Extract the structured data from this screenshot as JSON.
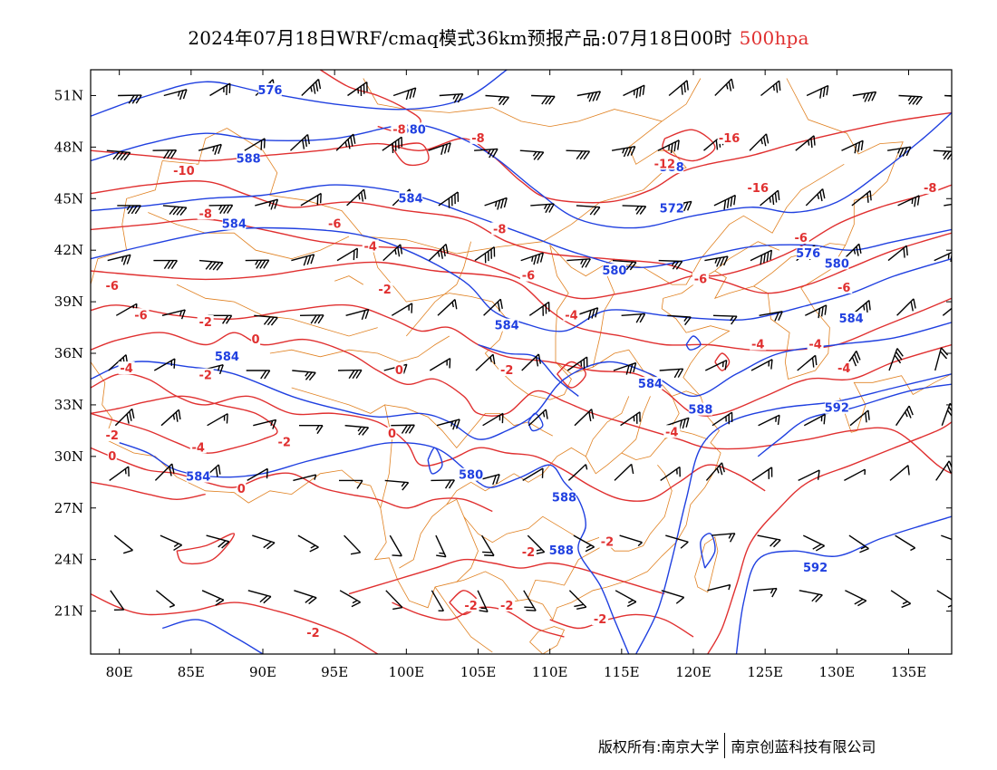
{
  "title": {
    "main": "2024年07月18日WRF/cmaq模式36km预报产品:07月18日00时",
    "level": "500hpa"
  },
  "colors": {
    "temperature": "#e03030",
    "height": "#2040e0",
    "coast": "#e08020",
    "wind": "#000000"
  },
  "map": {
    "lon_range": [
      78,
      138
    ],
    "lat_range": [
      18.5,
      52.5
    ],
    "lon_ticks": [
      "80E",
      "85E",
      "90E",
      "95E",
      "100E",
      "105E",
      "110E",
      "115E",
      "120E",
      "125E",
      "130E",
      "135E"
    ],
    "lat_ticks": [
      "51N",
      "48N",
      "45N",
      "42N",
      "39N",
      "36N",
      "33N",
      "30N",
      "27N",
      "24N",
      "21N"
    ]
  },
  "contour_labels": {
    "height": [
      {
        "text": "576",
        "lon": 90.5,
        "lat": 51.3
      },
      {
        "text": "580",
        "lon": 100.5,
        "lat": 49.0
      },
      {
        "text": "588",
        "lon": 89.0,
        "lat": 47.3
      },
      {
        "text": "584",
        "lon": 100.3,
        "lat": 45.0
      },
      {
        "text": "584",
        "lon": 88.0,
        "lat": 43.5
      },
      {
        "text": "588",
        "lon": 118.5,
        "lat": 46.8
      },
      {
        "text": "572",
        "lon": 118.5,
        "lat": 44.4
      },
      {
        "text": "576",
        "lon": 128.0,
        "lat": 41.8
      },
      {
        "text": "580",
        "lon": 130.0,
        "lat": 41.2
      },
      {
        "text": "580",
        "lon": 114.5,
        "lat": 40.8
      },
      {
        "text": "584",
        "lon": 107.0,
        "lat": 37.6
      },
      {
        "text": "584",
        "lon": 131.0,
        "lat": 38.0
      },
      {
        "text": "584",
        "lon": 87.5,
        "lat": 35.8
      },
      {
        "text": "584",
        "lon": 117.0,
        "lat": 34.2
      },
      {
        "text": "588",
        "lon": 120.5,
        "lat": 32.7
      },
      {
        "text": "592",
        "lon": 130.0,
        "lat": 32.8
      },
      {
        "text": "584",
        "lon": 85.5,
        "lat": 28.8
      },
      {
        "text": "580",
        "lon": 104.5,
        "lat": 28.9
      },
      {
        "text": "588",
        "lon": 111.0,
        "lat": 27.6
      },
      {
        "text": "588",
        "lon": 110.8,
        "lat": 24.5
      },
      {
        "text": "592",
        "lon": 128.5,
        "lat": 23.5
      }
    ],
    "temperature": [
      {
        "text": "-8",
        "lon": 99.5,
        "lat": 49.0
      },
      {
        "text": "-8",
        "lon": 105.0,
        "lat": 48.5
      },
      {
        "text": "-16",
        "lon": 122.5,
        "lat": 48.5
      },
      {
        "text": "-12",
        "lon": 118.0,
        "lat": 47.0
      },
      {
        "text": "-10",
        "lon": 84.5,
        "lat": 46.6
      },
      {
        "text": "-16",
        "lon": 124.5,
        "lat": 45.6
      },
      {
        "text": "-8",
        "lon": 136.5,
        "lat": 45.6
      },
      {
        "text": "-8",
        "lon": 86.0,
        "lat": 44.1
      },
      {
        "text": "-6",
        "lon": 95.0,
        "lat": 43.5
      },
      {
        "text": "-8",
        "lon": 106.5,
        "lat": 43.2
      },
      {
        "text": "-6",
        "lon": 127.5,
        "lat": 42.7
      },
      {
        "text": "-4",
        "lon": 97.5,
        "lat": 42.2
      },
      {
        "text": "-6",
        "lon": 108.5,
        "lat": 40.5
      },
      {
        "text": "-6",
        "lon": 120.5,
        "lat": 40.3
      },
      {
        "text": "-6",
        "lon": 130.5,
        "lat": 39.8
      },
      {
        "text": "-6",
        "lon": 79.5,
        "lat": 39.9
      },
      {
        "text": "-2",
        "lon": 98.5,
        "lat": 39.7
      },
      {
        "text": "-4",
        "lon": 111.5,
        "lat": 38.2
      },
      {
        "text": "-6",
        "lon": 81.5,
        "lat": 38.2
      },
      {
        "text": "-2",
        "lon": 86.0,
        "lat": 37.8
      },
      {
        "text": "0",
        "lon": 89.5,
        "lat": 36.8
      },
      {
        "text": "-4",
        "lon": 124.5,
        "lat": 36.5
      },
      {
        "text": "-4",
        "lon": 128.5,
        "lat": 36.5
      },
      {
        "text": "-4",
        "lon": 80.5,
        "lat": 35.1
      },
      {
        "text": "0",
        "lon": 99.5,
        "lat": 35.0
      },
      {
        "text": "-2",
        "lon": 107.0,
        "lat": 35.0
      },
      {
        "text": "-4",
        "lon": 130.5,
        "lat": 35.1
      },
      {
        "text": "-2",
        "lon": 86.0,
        "lat": 34.7
      },
      {
        "text": "-2",
        "lon": 79.5,
        "lat": 31.2
      },
      {
        "text": "0",
        "lon": 99.0,
        "lat": 31.3
      },
      {
        "text": "-2",
        "lon": 91.5,
        "lat": 30.8
      },
      {
        "text": "-4",
        "lon": 85.5,
        "lat": 30.5
      },
      {
        "text": "-4",
        "lon": 118.5,
        "lat": 31.4
      },
      {
        "text": "0",
        "lon": 79.5,
        "lat": 30.0
      },
      {
        "text": "0",
        "lon": 88.5,
        "lat": 28.1
      },
      {
        "text": "-2",
        "lon": 108.5,
        "lat": 24.4
      },
      {
        "text": "-2",
        "lon": 114.0,
        "lat": 25.0
      },
      {
        "text": "-2",
        "lon": 104.5,
        "lat": 21.3
      },
      {
        "text": "-2",
        "lon": 107.0,
        "lat": 21.3
      },
      {
        "text": "-2",
        "lon": 93.5,
        "lat": 19.7
      },
      {
        "text": "-2",
        "lon": 113.5,
        "lat": 20.5
      }
    ]
  },
  "footer": {
    "copyright": "版权所有:南京大学",
    "company": "南京创蓝科技有限公司"
  }
}
